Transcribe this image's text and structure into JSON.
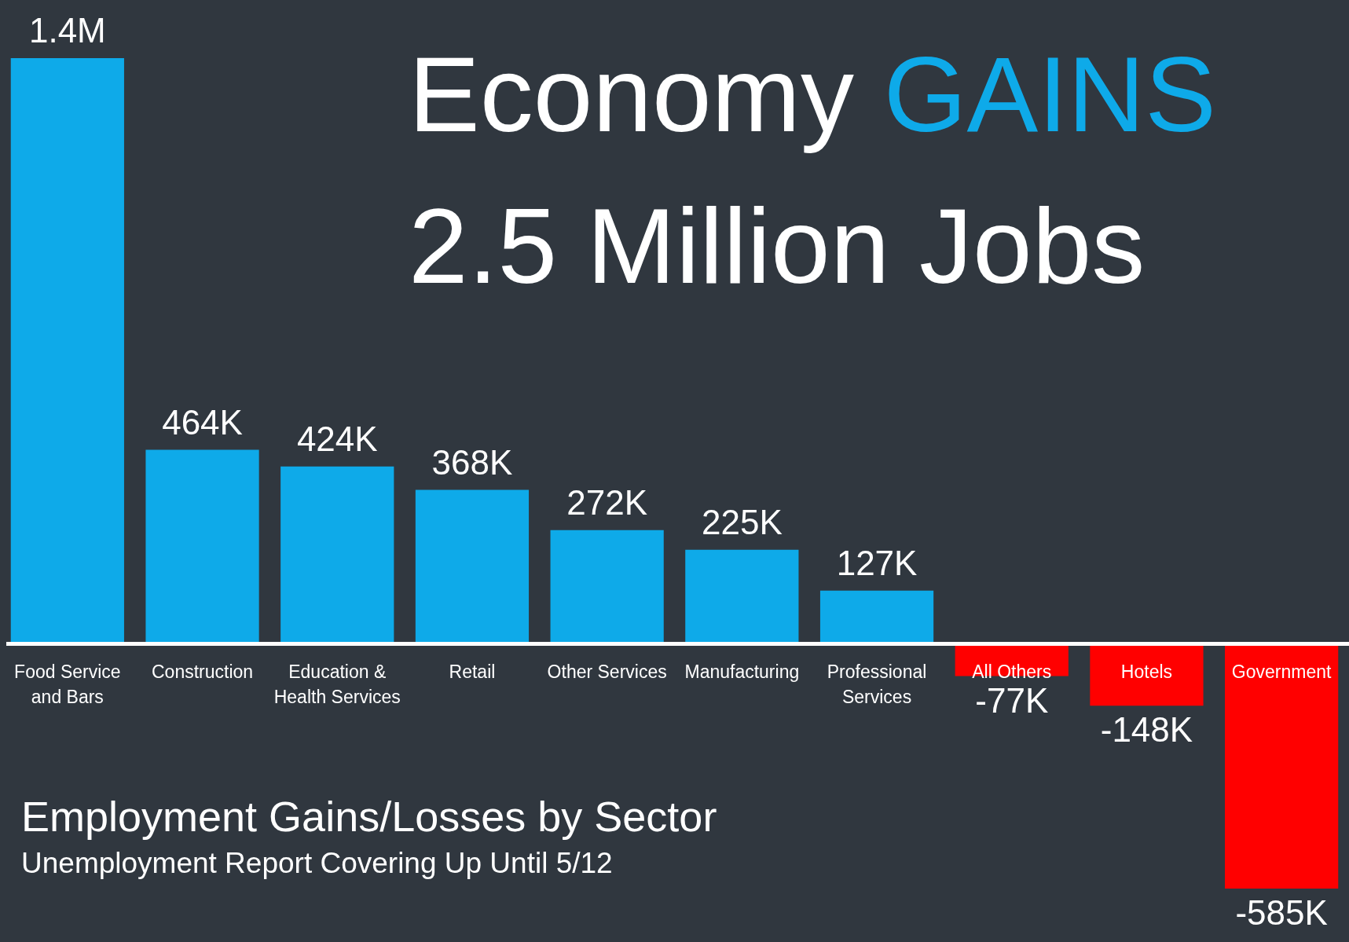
{
  "chart_data": {
    "type": "bar",
    "title": "Economy GAINS",
    "subtitle": "2.5 Million Jobs",
    "annotations": [
      "Employment Gains/Losses by Sector",
      "Unemployment Report Covering Up Until 5/12"
    ],
    "categories": [
      "Food Service and Bars",
      "Construction",
      "Education & Health Services",
      "Retail",
      "Other Services",
      "Manufacturing",
      "Professional Services",
      "All Others",
      "Hotels",
      "Government"
    ],
    "values": [
      1400000,
      464000,
      424000,
      368000,
      272000,
      225000,
      127000,
      -77000,
      -148000,
      -585000
    ],
    "value_labels": [
      "1.4M",
      "464K",
      "424K",
      "368K",
      "272K",
      "225K",
      "127K",
      "-77K",
      "-148K",
      "-585K"
    ],
    "colors": [
      "#0eaae9",
      "#0eaae9",
      "#0eaae9",
      "#0eaae9",
      "#0eaae9",
      "#0eaae9",
      "#0eaae9",
      "#ff0000",
      "#ff0000",
      "#ff0000"
    ],
    "legend": false
  }
}
